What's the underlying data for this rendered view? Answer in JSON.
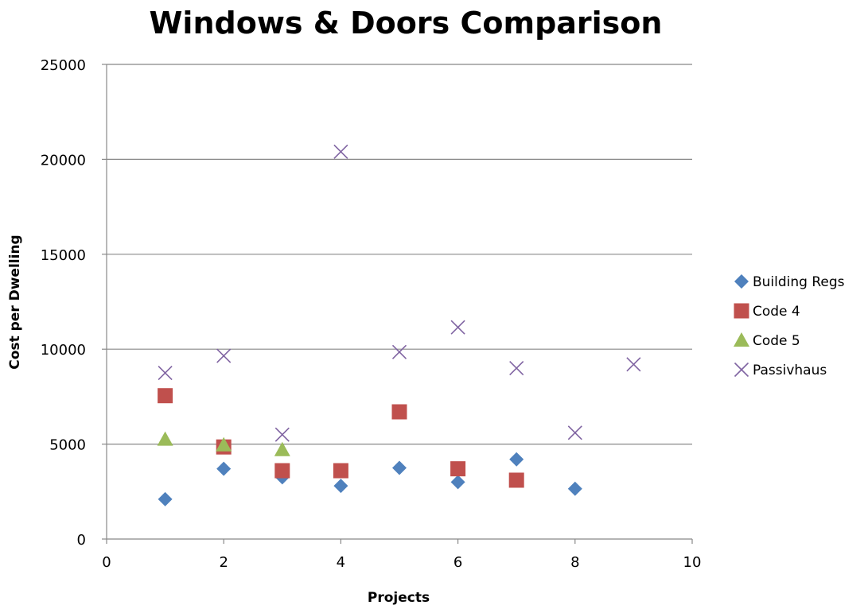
{
  "chart_data": {
    "type": "scatter",
    "title": "Windows & Doors Comparison",
    "xlabel": "Projects",
    "ylabel": "Cost per Dwelling",
    "xlim": [
      0,
      10
    ],
    "ylim": [
      0,
      25000
    ],
    "xticks": [
      0,
      2,
      4,
      6,
      8,
      10
    ],
    "yticks": [
      0,
      5000,
      10000,
      15000,
      20000,
      25000
    ],
    "grid": "horizontal",
    "legend_position": "right",
    "series": [
      {
        "name": "Building Regs",
        "marker": "diamond",
        "color": "#4F81BD",
        "points": [
          [
            1,
            2100
          ],
          [
            2,
            3700
          ],
          [
            3,
            3250
          ],
          [
            4,
            2800
          ],
          [
            5,
            3750
          ],
          [
            6,
            3000
          ],
          [
            7,
            4200
          ],
          [
            8,
            2650
          ]
        ]
      },
      {
        "name": "Code 4",
        "marker": "square",
        "color": "#C0504D",
        "points": [
          [
            1,
            7550
          ],
          [
            2,
            4850
          ],
          [
            3,
            3600
          ],
          [
            4,
            3600
          ],
          [
            5,
            6700
          ],
          [
            6,
            3700
          ],
          [
            7,
            3100
          ]
        ]
      },
      {
        "name": "Code 5",
        "marker": "triangle",
        "color": "#9BBB59",
        "points": [
          [
            1,
            5250
          ],
          [
            2,
            4950
          ],
          [
            3,
            4700
          ]
        ]
      },
      {
        "name": "Passivhaus",
        "marker": "x",
        "color": "#8064A2",
        "points": [
          [
            1,
            8750
          ],
          [
            2,
            9650
          ],
          [
            3,
            5500
          ],
          [
            4,
            20400
          ],
          [
            5,
            9850
          ],
          [
            6,
            11150
          ],
          [
            7,
            9000
          ],
          [
            8,
            5600
          ],
          [
            9,
            9200
          ]
        ]
      }
    ]
  }
}
